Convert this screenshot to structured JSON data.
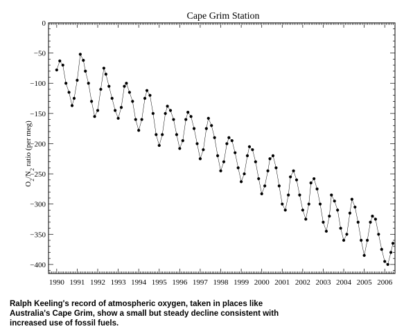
{
  "caption": "Ralph Keeling's record of atmospheric oxygen, taken in places like Australia's Cape Grim, show a small but steady decline consistent with increased use of fossil fuels.",
  "chart_data": {
    "type": "scatter",
    "title": "Cape Grim Station",
    "ylabel": "O2/N2 ratio (per meg)",
    "xlabel": "",
    "xlim": [
      1989.6,
      2006.5
    ],
    "ylim": [
      -415,
      0
    ],
    "x_ticks": [
      1990,
      1991,
      1992,
      1993,
      1994,
      1995,
      1996,
      1997,
      1998,
      1999,
      2000,
      2001,
      2002,
      2003,
      2004,
      2005,
      2006
    ],
    "y_ticks": [
      0,
      -50,
      -100,
      -150,
      -200,
      -250,
      -300,
      -350,
      -400
    ],
    "x_tick_labels": [
      "1990",
      "1991",
      "1992",
      "1993",
      "1994",
      "1995",
      "1996",
      "1997",
      "1998",
      "1999",
      "2000",
      "2001",
      "2002",
      "2003",
      "2004",
      "2005",
      "2006"
    ],
    "y_tick_labels": [
      "0",
      "−50",
      "−100",
      "−150",
      "−200",
      "−250",
      "−300",
      "−350",
      "−400"
    ],
    "grid": false,
    "marker": "dot",
    "connected": true,
    "series": [
      {
        "x": [
          1990.0,
          1990.15,
          1990.3,
          1990.45,
          1990.6,
          1990.75,
          1990.85,
          1991.0,
          1991.15,
          1991.3,
          1991.4,
          1991.55,
          1991.7,
          1991.85,
          1992.0,
          1992.15,
          1992.3,
          1992.4,
          1992.55,
          1992.7,
          1992.85,
          1993.0,
          1993.15,
          1993.3,
          1993.4,
          1993.55,
          1993.7,
          1993.85,
          1994.0,
          1994.15,
          1994.3,
          1994.4,
          1994.55,
          1994.7,
          1994.85,
          1995.0,
          1995.15,
          1995.3,
          1995.4,
          1995.55,
          1995.7,
          1995.85,
          1996.0,
          1996.15,
          1996.3,
          1996.4,
          1996.55,
          1996.7,
          1996.85,
          1997.0,
          1997.15,
          1997.3,
          1997.4,
          1997.55,
          1997.7,
          1997.85,
          1998.0,
          1998.15,
          1998.3,
          1998.4,
          1998.55,
          1998.7,
          1998.85,
          1999.0,
          1999.15,
          1999.3,
          1999.4,
          1999.55,
          1999.7,
          1999.85,
          2000.0,
          2000.15,
          2000.3,
          2000.4,
          2000.55,
          2000.7,
          2000.85,
          2001.0,
          2001.15,
          2001.3,
          2001.4,
          2001.55,
          2001.7,
          2001.85,
          2002.0,
          2002.15,
          2002.3,
          2002.4,
          2002.55,
          2002.7,
          2002.85,
          2003.0,
          2003.15,
          2003.3,
          2003.4,
          2003.55,
          2003.7,
          2003.85,
          2004.0,
          2004.15,
          2004.3,
          2004.4,
          2004.55,
          2004.7,
          2004.85,
          2005.0,
          2005.15,
          2005.3,
          2005.4,
          2005.55,
          2005.7,
          2005.85,
          2006.0,
          2006.15,
          2006.3,
          2006.4
        ],
        "values": [
          -78,
          -63,
          -70,
          -100,
          -115,
          -137,
          -125,
          -95,
          -52,
          -62,
          -80,
          -100,
          -130,
          -155,
          -145,
          -110,
          -75,
          -85,
          -105,
          -125,
          -145,
          -158,
          -140,
          -105,
          -100,
          -115,
          -130,
          -160,
          -178,
          -160,
          -125,
          -112,
          -120,
          -150,
          -185,
          -203,
          -185,
          -150,
          -138,
          -145,
          -160,
          -185,
          -208,
          -195,
          -160,
          -148,
          -155,
          -175,
          -200,
          -225,
          -210,
          -175,
          -158,
          -170,
          -190,
          -220,
          -245,
          -230,
          -200,
          -190,
          -195,
          -215,
          -240,
          -263,
          -250,
          -220,
          -205,
          -210,
          -230,
          -258,
          -283,
          -270,
          -245,
          -225,
          -220,
          -240,
          -270,
          -300,
          -310,
          -285,
          -255,
          -245,
          -260,
          -285,
          -310,
          -325,
          -300,
          -265,
          -258,
          -275,
          -300,
          -330,
          -345,
          -320,
          -285,
          -295,
          -310,
          -340,
          -360,
          -350,
          -315,
          -292,
          -305,
          -330,
          -360,
          -385,
          -360,
          -330,
          -320,
          -325,
          -350,
          -375,
          -395,
          -400,
          -380,
          -365
        ]
      }
    ]
  }
}
